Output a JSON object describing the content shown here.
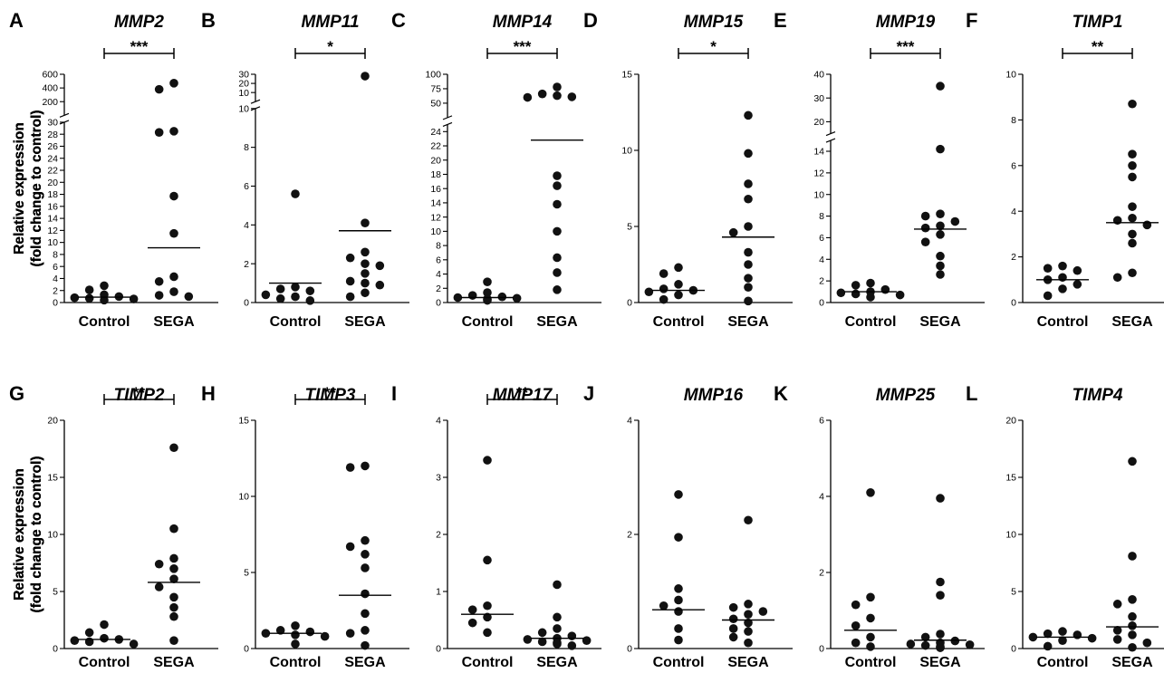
{
  "chart_data": [
    {
      "type": "scatter",
      "panel": "A",
      "title": "MMP2",
      "ylabel": [
        "Relative expression",
        "(fold change to control)"
      ],
      "categories": [
        "Control",
        "SEGA"
      ],
      "significance": "***",
      "yaxis": {
        "broken": true,
        "segments": [
          {
            "range": [
              0,
              30
            ],
            "ticks": [
              0,
              2,
              4,
              6,
              8,
              10,
              12,
              14,
              16,
              18,
              20,
              22,
              24,
              26,
              28,
              30
            ],
            "fraction": [
              0,
              0.79
            ]
          },
          {
            "range": [
              0,
              600
            ],
            "ticks": [
              0,
              200,
              400,
              600
            ],
            "fraction": [
              0.82,
              1
            ]
          }
        ]
      },
      "series": [
        {
          "name": "Control",
          "values": [
            0.4,
            0.6,
            0.7,
            0.8,
            1.0,
            1.3,
            2.1,
            2.8
          ],
          "mean": 0.9
        },
        {
          "name": "SEGA",
          "values": [
            1.0,
            1.2,
            1.8,
            3.5,
            4.3,
            11.5,
            17.7,
            28.3,
            28.5,
            380,
            470
          ],
          "mean": 9.1
        }
      ]
    },
    {
      "type": "scatter",
      "panel": "B",
      "title": "MMP11",
      "ylabel": [
        "Relative expression",
        "(fold change to control)"
      ],
      "categories": [
        "Control",
        "SEGA"
      ],
      "significance": "*",
      "yaxis": {
        "broken": true,
        "segments": [
          {
            "range": [
              0,
              10
            ],
            "ticks": [
              0,
              2,
              4,
              6,
              8,
              10
            ],
            "fraction": [
              0,
              0.85
            ]
          },
          {
            "range": [
              0,
              30
            ],
            "ticks": [
              10,
              20,
              30
            ],
            "fraction": [
              0.88,
              1
            ]
          }
        ]
      },
      "series": [
        {
          "name": "Control",
          "values": [
            0.1,
            0.2,
            0.3,
            0.4,
            0.6,
            0.7,
            0.8,
            5.6
          ],
          "mean": 1.0
        },
        {
          "name": "SEGA",
          "values": [
            0.3,
            0.5,
            0.9,
            1.0,
            1.1,
            1.5,
            1.9,
            2.0,
            2.3,
            2.6,
            4.1,
            28
          ],
          "mean": 3.7
        }
      ]
    },
    {
      "type": "scatter",
      "panel": "C",
      "title": "MMP14",
      "ylabel": [
        "Relative expression",
        "(fold change to control)"
      ],
      "categories": [
        "Control",
        "SEGA"
      ],
      "significance": "***",
      "yaxis": {
        "broken": true,
        "segments": [
          {
            "range": [
              0,
              25
            ],
            "ticks": [
              0,
              2,
              4,
              6,
              8,
              10,
              12,
              14,
              16,
              18,
              20,
              22,
              24
            ],
            "fraction": [
              0,
              0.78
            ]
          },
          {
            "range": [
              25,
              100
            ],
            "ticks": [
              25,
              50,
              75,
              100
            ],
            "fraction": [
              0.81,
              1
            ]
          }
        ]
      },
      "series": [
        {
          "name": "Control",
          "values": [
            0.3,
            0.5,
            0.6,
            0.7,
            0.8,
            1.0,
            1.4,
            2.9
          ],
          "mean": 0.7
        },
        {
          "name": "SEGA",
          "values": [
            1.8,
            4.2,
            6.3,
            10.0,
            13.8,
            16.4,
            17.8,
            60,
            61,
            63,
            66,
            78
          ],
          "mean": 22.8
        }
      ]
    },
    {
      "type": "scatter",
      "panel": "D",
      "title": "MMP15",
      "ylabel": [
        "Relative expression",
        "(fold change to control)"
      ],
      "categories": [
        "Control",
        "SEGA"
      ],
      "significance": "*",
      "yaxis": {
        "range": [
          0,
          15
        ],
        "ticks": [
          0,
          5,
          10,
          15
        ]
      },
      "series": [
        {
          "name": "Control",
          "values": [
            0.2,
            0.5,
            0.7,
            0.8,
            0.9,
            1.2,
            1.9,
            2.3
          ],
          "mean": 0.8
        },
        {
          "name": "SEGA",
          "values": [
            0.1,
            1.0,
            1.6,
            2.5,
            3.3,
            4.6,
            5.0,
            6.8,
            7.8,
            9.8,
            12.3
          ],
          "mean": 4.3
        }
      ]
    },
    {
      "type": "scatter",
      "panel": "E",
      "title": "MMP19",
      "ylabel": [
        "Relative expression",
        "(fold change to control)"
      ],
      "categories": [
        "Control",
        "SEGA"
      ],
      "significance": "***",
      "yaxis": {
        "broken": true,
        "segments": [
          {
            "range": [
              0,
              15
            ],
            "ticks": [
              0,
              2,
              4,
              6,
              8,
              10,
              12,
              14
            ],
            "fraction": [
              0,
              0.71
            ]
          },
          {
            "range": [
              15,
              40
            ],
            "ticks": [
              20,
              30,
              40
            ],
            "fraction": [
              0.74,
              1
            ]
          }
        ]
      },
      "series": [
        {
          "name": "Control",
          "values": [
            0.5,
            0.7,
            0.8,
            0.9,
            1.0,
            1.2,
            1.6,
            1.8
          ],
          "mean": 1.0
        },
        {
          "name": "SEGA",
          "values": [
            2.6,
            3.4,
            4.3,
            5.6,
            6.3,
            6.9,
            7.1,
            7.5,
            8.0,
            8.2,
            14.2,
            35
          ],
          "mean": 6.8
        }
      ]
    },
    {
      "type": "scatter",
      "panel": "F",
      "title": "TIMP1",
      "ylabel": [
        "Relative expression",
        "(fold change to control)"
      ],
      "categories": [
        "Control",
        "SEGA"
      ],
      "significance": "**",
      "yaxis": {
        "range": [
          0,
          10
        ],
        "ticks": [
          0,
          2,
          4,
          6,
          8,
          10
        ]
      },
      "series": [
        {
          "name": "Control",
          "values": [
            0.3,
            0.6,
            0.8,
            1.0,
            1.1,
            1.4,
            1.5,
            1.6
          ],
          "mean": 1.0
        },
        {
          "name": "SEGA",
          "values": [
            1.1,
            1.3,
            2.6,
            3.0,
            3.4,
            3.6,
            3.7,
            4.2,
            5.5,
            6.0,
            6.5,
            8.7
          ],
          "mean": 3.5
        }
      ]
    },
    {
      "type": "scatter",
      "panel": "G",
      "title": "TIMP2",
      "ylabel": [
        "Relative expression",
        "(fold change to control)"
      ],
      "categories": [
        "Control",
        "SEGA"
      ],
      "significance": "**",
      "yaxis": {
        "range": [
          0,
          20
        ],
        "ticks": [
          0,
          5,
          10,
          15,
          20
        ]
      },
      "series": [
        {
          "name": "Control",
          "values": [
            0.4,
            0.6,
            0.7,
            0.8,
            0.9,
            1.4,
            2.1
          ],
          "mean": 0.8
        },
        {
          "name": "SEGA",
          "values": [
            0.7,
            2.8,
            3.6,
            4.5,
            5.4,
            6.1,
            7.0,
            7.4,
            7.9,
            10.5,
            17.6
          ],
          "mean": 5.8
        }
      ]
    },
    {
      "type": "scatter",
      "panel": "H",
      "title": "TIMP3",
      "ylabel": [
        "Relative expression",
        "(fold change to control)"
      ],
      "categories": [
        "Control",
        "SEGA"
      ],
      "significance": "**",
      "yaxis": {
        "range": [
          0,
          15
        ],
        "ticks": [
          0,
          5,
          10,
          15
        ]
      },
      "series": [
        {
          "name": "Control",
          "values": [
            0.3,
            0.8,
            0.9,
            1.0,
            1.1,
            1.2,
            1.5
          ],
          "mean": 1.0
        },
        {
          "name": "SEGA",
          "values": [
            0.2,
            1.0,
            1.2,
            2.3,
            3.6,
            5.3,
            6.2,
            6.7,
            7.1,
            11.9,
            12.0
          ],
          "mean": 3.5
        }
      ]
    },
    {
      "type": "scatter",
      "panel": "I",
      "title": "MMP17",
      "ylabel": [
        "Relative expression",
        "(fold change to control)"
      ],
      "categories": [
        "Control",
        "SEGA"
      ],
      "significance": "**",
      "yaxis": {
        "range": [
          0,
          4
        ],
        "ticks": [
          0,
          1,
          2,
          3,
          4
        ]
      },
      "series": [
        {
          "name": "Control",
          "values": [
            0.28,
            0.45,
            0.55,
            0.68,
            0.75,
            1.55,
            3.3
          ],
          "mean": 0.6
        },
        {
          "name": "SEGA",
          "values": [
            0.05,
            0.08,
            0.1,
            0.12,
            0.14,
            0.16,
            0.18,
            0.22,
            0.28,
            0.35,
            0.55,
            1.12
          ],
          "mean": 0.18
        }
      ]
    },
    {
      "type": "scatter",
      "panel": "J",
      "title": "MMP16",
      "ylabel": [
        "Relative expression",
        "(fold change to control)"
      ],
      "categories": [
        "Control",
        "SEGA"
      ],
      "yaxis": {
        "range": [
          0,
          4
        ],
        "ticks": [
          0,
          2,
          4
        ]
      },
      "series": [
        {
          "name": "Control",
          "values": [
            0.15,
            0.35,
            0.65,
            0.75,
            0.85,
            1.05,
            1.95,
            2.7
          ],
          "mean": 0.68
        },
        {
          "name": "SEGA",
          "values": [
            0.1,
            0.2,
            0.3,
            0.35,
            0.45,
            0.52,
            0.6,
            0.65,
            0.72,
            0.78,
            2.25
          ],
          "mean": 0.5
        }
      ]
    },
    {
      "type": "scatter",
      "panel": "K",
      "title": "MMP25",
      "ylabel": [
        "Relative expression",
        "(fold change to control)"
      ],
      "categories": [
        "Control",
        "SEGA"
      ],
      "yaxis": {
        "range": [
          0,
          6
        ],
        "ticks": [
          0,
          2,
          4,
          6
        ]
      },
      "series": [
        {
          "name": "Control",
          "values": [
            0.05,
            0.15,
            0.3,
            0.6,
            0.8,
            1.15,
            1.35,
            4.1
          ],
          "mean": 0.48
        },
        {
          "name": "SEGA",
          "values": [
            0.02,
            0.05,
            0.08,
            0.1,
            0.12,
            0.15,
            0.2,
            0.3,
            0.38,
            1.4,
            1.75,
            3.95
          ],
          "mean": 0.22
        }
      ]
    },
    {
      "type": "scatter",
      "panel": "L",
      "title": "TIMP4",
      "ylabel": [
        "Relative expression",
        "(fold change to control)"
      ],
      "categories": [
        "Control",
        "SEGA"
      ],
      "yaxis": {
        "range": [
          0,
          20
        ],
        "ticks": [
          0,
          5,
          10,
          15,
          20
        ]
      },
      "series": [
        {
          "name": "Control",
          "values": [
            0.2,
            0.7,
            0.9,
            1.0,
            1.2,
            1.3,
            1.5
          ],
          "mean": 1.0
        },
        {
          "name": "SEGA",
          "values": [
            0.1,
            0.5,
            0.8,
            1.2,
            1.6,
            2.0,
            2.8,
            3.9,
            4.3,
            8.1,
            16.4
          ],
          "mean": 1.9
        }
      ]
    }
  ]
}
